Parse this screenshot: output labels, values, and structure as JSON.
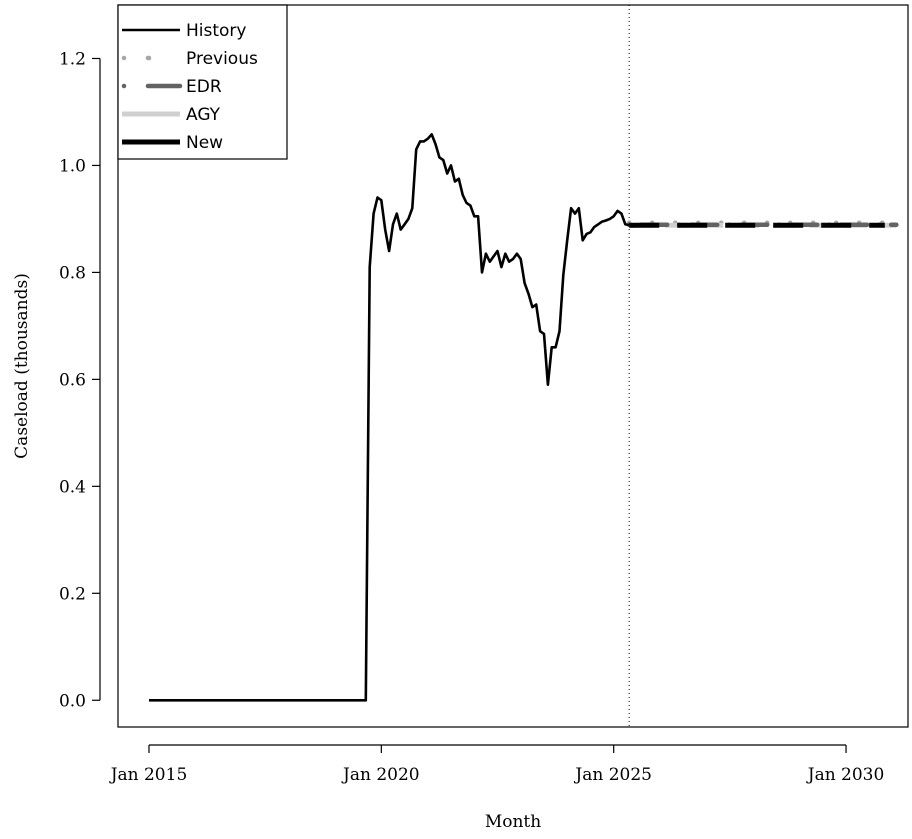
{
  "chart_data": {
    "type": "line",
    "title": "",
    "xlabel": "Month",
    "ylabel": "Caseload (thousands)",
    "xlim": [
      "2014-05",
      "2031-05"
    ],
    "ylim": [
      -0.05,
      1.3
    ],
    "x_ticks": [
      {
        "month": "2015-01",
        "label": "Jan 2015"
      },
      {
        "month": "2020-01",
        "label": "Jan 2020"
      },
      {
        "month": "2025-01",
        "label": "Jan 2025"
      },
      {
        "month": "2030-01",
        "label": "Jan 2030"
      }
    ],
    "y_ticks": [
      0.0,
      0.2,
      0.4,
      0.6,
      0.8,
      1.0,
      1.2
    ],
    "y_tick_labels": [
      "0.0",
      "0.2",
      "0.4",
      "0.6",
      "0.8",
      "1.0",
      "1.2"
    ],
    "forecast_start_line": "2025-05",
    "legend": {
      "position": "top-left",
      "entries": [
        {
          "name": "History",
          "style": "solid",
          "color": "#000000"
        },
        {
          "name": "Previous",
          "style": "dotted",
          "color": "#a6a6a6"
        },
        {
          "name": "EDR",
          "style": "dotdash",
          "color": "#636363"
        },
        {
          "name": "AGY",
          "style": "dashed",
          "color": "#d0d0d0"
        },
        {
          "name": "New",
          "style": "dashed-thick",
          "color": "#000000"
        }
      ]
    },
    "series": [
      {
        "name": "History",
        "points": [
          [
            "2015-01",
            0.0
          ],
          [
            "2016-01",
            0.0
          ],
          [
            "2017-01",
            0.0
          ],
          [
            "2018-01",
            0.0
          ],
          [
            "2019-01",
            0.0
          ],
          [
            "2019-09",
            0.0
          ],
          [
            "2019-10",
            0.81
          ],
          [
            "2019-11",
            0.91
          ],
          [
            "2019-12",
            0.94
          ],
          [
            "2020-01",
            0.935
          ],
          [
            "2020-02",
            0.88
          ],
          [
            "2020-03",
            0.84
          ],
          [
            "2020-04",
            0.89
          ],
          [
            "2020-05",
            0.91
          ],
          [
            "2020-06",
            0.88
          ],
          [
            "2020-07",
            0.89
          ],
          [
            "2020-08",
            0.9
          ],
          [
            "2020-09",
            0.92
          ],
          [
            "2020-10",
            1.03
          ],
          [
            "2020-11",
            1.045
          ],
          [
            "2020-12",
            1.045
          ],
          [
            "2021-01",
            1.05
          ],
          [
            "2021-02",
            1.058
          ],
          [
            "2021-03",
            1.04
          ],
          [
            "2021-04",
            1.015
          ],
          [
            "2021-05",
            1.01
          ],
          [
            "2021-06",
            0.985
          ],
          [
            "2021-07",
            1.0
          ],
          [
            "2021-08",
            0.97
          ],
          [
            "2021-09",
            0.975
          ],
          [
            "2021-10",
            0.945
          ],
          [
            "2021-11",
            0.93
          ],
          [
            "2021-12",
            0.925
          ],
          [
            "2022-01",
            0.905
          ],
          [
            "2022-02",
            0.905
          ],
          [
            "2022-03",
            0.8
          ],
          [
            "2022-04",
            0.835
          ],
          [
            "2022-05",
            0.82
          ],
          [
            "2022-06",
            0.83
          ],
          [
            "2022-07",
            0.84
          ],
          [
            "2022-08",
            0.81
          ],
          [
            "2022-09",
            0.835
          ],
          [
            "2022-10",
            0.82
          ],
          [
            "2022-11",
            0.825
          ],
          [
            "2022-12",
            0.835
          ],
          [
            "2023-01",
            0.825
          ],
          [
            "2023-02",
            0.78
          ],
          [
            "2023-03",
            0.76
          ],
          [
            "2023-04",
            0.735
          ],
          [
            "2023-05",
            0.74
          ],
          [
            "2023-06",
            0.69
          ],
          [
            "2023-07",
            0.685
          ],
          [
            "2023-08",
            0.59
          ],
          [
            "2023-09",
            0.66
          ],
          [
            "2023-10",
            0.66
          ],
          [
            "2023-11",
            0.69
          ],
          [
            "2023-12",
            0.795
          ],
          [
            "2024-01",
            0.86
          ],
          [
            "2024-02",
            0.92
          ],
          [
            "2024-03",
            0.91
          ],
          [
            "2024-04",
            0.92
          ],
          [
            "2024-05",
            0.86
          ],
          [
            "2024-06",
            0.872
          ],
          [
            "2024-07",
            0.875
          ],
          [
            "2024-08",
            0.885
          ],
          [
            "2024-09",
            0.89
          ],
          [
            "2024-10",
            0.895
          ],
          [
            "2024-11",
            0.897
          ],
          [
            "2024-12",
            0.9
          ],
          [
            "2025-01",
            0.905
          ],
          [
            "2025-02",
            0.915
          ],
          [
            "2025-03",
            0.91
          ],
          [
            "2025-04",
            0.89
          ],
          [
            "2025-05",
            0.888
          ]
        ]
      },
      {
        "name": "Previous",
        "points": [
          [
            "2025-05",
            0.893
          ],
          [
            "2031-02",
            0.893
          ]
        ]
      },
      {
        "name": "EDR",
        "points": [
          [
            "2025-05",
            0.889
          ],
          [
            "2031-02",
            0.889
          ]
        ]
      },
      {
        "name": "AGY",
        "points": [
          [
            "2025-05",
            0.888
          ],
          [
            "2031-02",
            0.888
          ]
        ]
      },
      {
        "name": "New",
        "points": [
          [
            "2025-05",
            0.888
          ],
          [
            "2030-11",
            0.888
          ]
        ]
      }
    ]
  }
}
